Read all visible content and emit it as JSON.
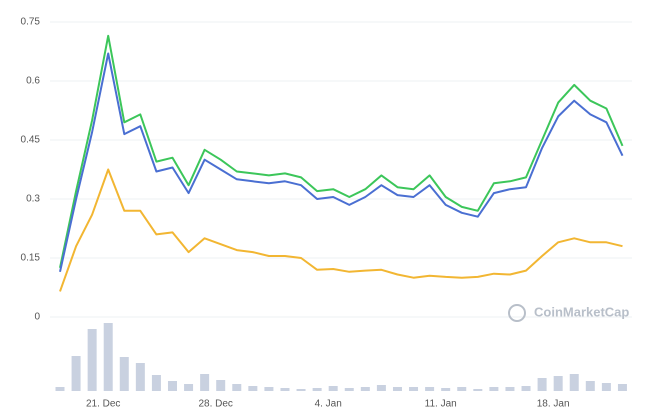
{
  "chart_data": {
    "type": "line",
    "watermark": "CoinMarketCap",
    "categories": [
      null,
      null,
      null,
      "21. Dec",
      null,
      null,
      null,
      null,
      null,
      null,
      "28. Dec",
      null,
      null,
      null,
      null,
      null,
      null,
      "4. Jan",
      null,
      null,
      null,
      null,
      null,
      null,
      "11. Jan",
      null,
      null,
      null,
      null,
      null,
      null,
      "18. Jan",
      null,
      null,
      null,
      null
    ],
    "ylim": [
      0,
      0.75
    ],
    "yticks": [
      0,
      0.15,
      0.3,
      0.45,
      0.6,
      0.75
    ],
    "grid": true,
    "series": [
      {
        "color": "#3cc65a",
        "values": [
          0.125,
          0.32,
          0.5,
          0.715,
          0.495,
          0.515,
          0.395,
          0.405,
          0.335,
          0.425,
          0.4,
          0.37,
          0.365,
          0.36,
          0.365,
          0.355,
          0.32,
          0.325,
          0.305,
          0.325,
          0.36,
          0.33,
          0.325,
          0.36,
          0.305,
          0.28,
          0.27,
          0.34,
          0.345,
          0.355,
          0.45,
          0.545,
          0.59,
          0.55,
          0.53,
          0.435
        ]
      },
      {
        "color": "#4a6fd2",
        "values": [
          0.115,
          0.3,
          0.47,
          0.67,
          0.465,
          0.485,
          0.37,
          0.38,
          0.315,
          0.4,
          0.375,
          0.35,
          0.345,
          0.34,
          0.345,
          0.335,
          0.3,
          0.305,
          0.285,
          0.305,
          0.335,
          0.31,
          0.305,
          0.335,
          0.285,
          0.265,
          0.255,
          0.315,
          0.325,
          0.33,
          0.43,
          0.51,
          0.55,
          0.515,
          0.495,
          0.41
        ]
      },
      {
        "color": "#f2b632",
        "values": [
          0.065,
          0.18,
          0.26,
          0.375,
          0.27,
          0.27,
          0.21,
          0.215,
          0.165,
          0.2,
          0.185,
          0.17,
          0.165,
          0.155,
          0.155,
          0.15,
          0.12,
          0.122,
          0.115,
          0.118,
          0.12,
          0.108,
          0.1,
          0.105,
          0.102,
          0.1,
          0.102,
          0.11,
          0.108,
          0.118,
          0.155,
          0.19,
          0.2,
          0.19,
          0.19,
          0.18
        ]
      }
    ],
    "volume": {
      "type": "bar",
      "color": "#c9d1e0",
      "values": [
        4,
        35,
        62,
        68,
        34,
        28,
        16,
        10,
        7,
        17,
        11,
        7,
        5,
        4,
        3,
        2,
        3,
        5,
        3,
        4,
        6,
        4,
        4,
        4,
        3,
        4,
        2,
        4,
        4,
        5,
        13,
        15,
        17,
        10,
        8,
        7
      ]
    }
  }
}
